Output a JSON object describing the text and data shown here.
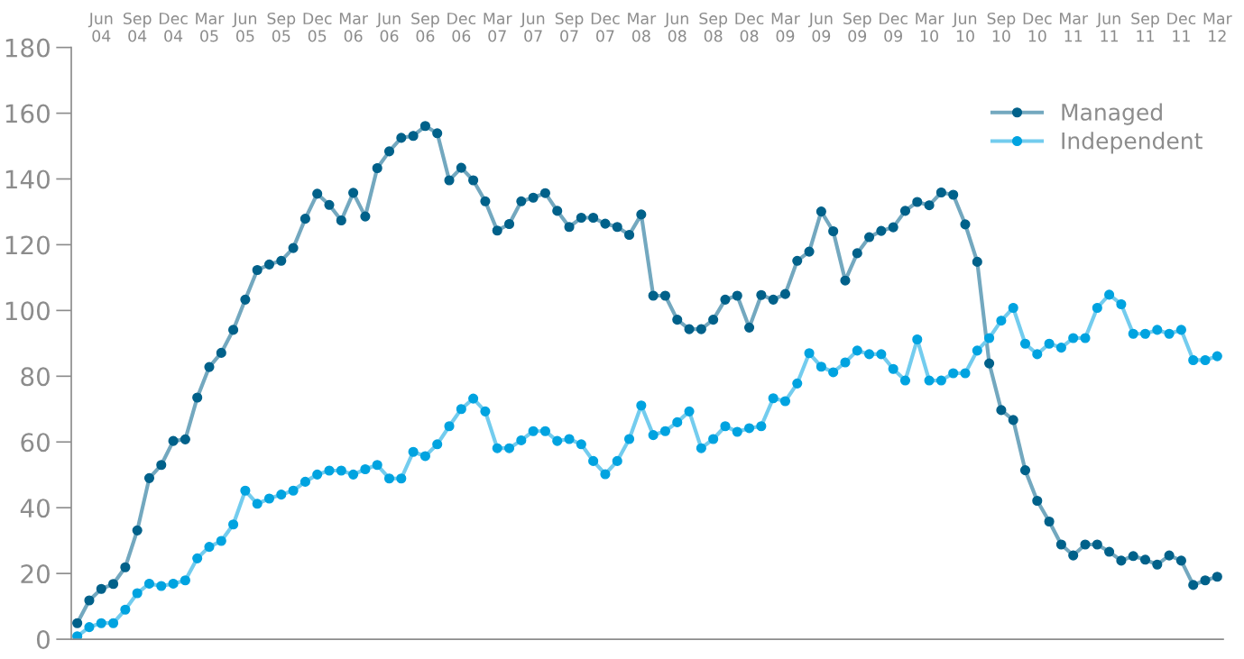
{
  "chart_data": {
    "type": "line",
    "categories": [
      null,
      null,
      "Jun\n04",
      null,
      null,
      "Sep\n04",
      null,
      null,
      "Dec\n04",
      null,
      null,
      "Mar\n05",
      null,
      null,
      "Jun\n05",
      null,
      null,
      "Sep\n05",
      null,
      null,
      "Dec\n05",
      null,
      null,
      "Mar\n06",
      null,
      null,
      "Jun\n06",
      null,
      null,
      "Sep\n06",
      null,
      null,
      "Dec\n06",
      null,
      null,
      "Mar\n07",
      null,
      null,
      "Jun\n07",
      null,
      null,
      "Sep\n07",
      null,
      null,
      "Dec\n07",
      null,
      null,
      "Mar\n08",
      null,
      null,
      "Jun\n08",
      null,
      null,
      "Sep\n08",
      null,
      null,
      "Dec\n08",
      null,
      null,
      "Mar\n09",
      null,
      null,
      "Jun\n09",
      null,
      null,
      "Sep\n09",
      null,
      null,
      "Dec\n09",
      null,
      null,
      "Mar\n10",
      null,
      null,
      "Jun\n10",
      null,
      null,
      "Sep\n10",
      null,
      null,
      "Dec\n10",
      null,
      null,
      "Mar\n11",
      null,
      null,
      "Jun\n11",
      null,
      null,
      "Sep\n11",
      null,
      null,
      "Dec\n11",
      null,
      null,
      "Mar\n12"
    ],
    "series": [
      {
        "name": "Managed",
        "color": "#00618a",
        "values": [
          4.9,
          11.8,
          15.3,
          16.8,
          21.9,
          33.1,
          49,
          53,
          60.3,
          60.8,
          73.5,
          82.8,
          87.1,
          94.1,
          103.3,
          112.3,
          114,
          115.1,
          119,
          127.9,
          135.5,
          132.1,
          127.4,
          135.8,
          128.6,
          143.3,
          148.4,
          152.5,
          153.1,
          156.1,
          153.9,
          139.6,
          143.4,
          139.6,
          133.2,
          124.3,
          126.3,
          133.2,
          134.3,
          135.7,
          130.3,
          125.4,
          128.2,
          128.2,
          126.4,
          125.4,
          123,
          129.2,
          104.5,
          104.5,
          97.2,
          94.3,
          94.3,
          97.2,
          103.3,
          104.5,
          94.8,
          104.7,
          103.3,
          105,
          115.1,
          117.9,
          130.1,
          124.1,
          109.1,
          117.4,
          122.3,
          124.2,
          125.3,
          130.3,
          133,
          132,
          135.9,
          135.2,
          126.2,
          114.8,
          83.9,
          69.7,
          66.7,
          51.4,
          42.1,
          35.8,
          28.8,
          25.5,
          28.8,
          28.8,
          26.6,
          23.9,
          25.3,
          24.2,
          22.7,
          25.5,
          23.9,
          16.5,
          17.9,
          19
        ]
      },
      {
        "name": "Independent",
        "color": "#00a3e0",
        "values": [
          0.9,
          3.7,
          4.9,
          4.9,
          9,
          14,
          16.9,
          16.2,
          16.9,
          17.9,
          24.6,
          28.1,
          29.9,
          34.9,
          45.2,
          41.2,
          42.8,
          44,
          45.2,
          47.9,
          50.1,
          51.3,
          51.3,
          50.1,
          51.7,
          53,
          48.9,
          48.9,
          57,
          55.7,
          59.3,
          64.8,
          70,
          73.2,
          69.3,
          58.1,
          58.1,
          60.5,
          63.3,
          63.3,
          60.3,
          60.9,
          59.3,
          54.2,
          50.2,
          54.2,
          60.9,
          71.1,
          62.1,
          63.3,
          66,
          69.3,
          58.1,
          60.9,
          64.8,
          63.1,
          64.2,
          64.8,
          73.3,
          72.4,
          77.8,
          87,
          82.9,
          81.2,
          84.2,
          87.8,
          86.7,
          86.7,
          82.2,
          78.7,
          91.2,
          78.7,
          78.7,
          80.9,
          80.9,
          87.8,
          91.6,
          96.9,
          100.8,
          89.9,
          86.7,
          89.9,
          88.7,
          91.6,
          91.6,
          100.8,
          104.8,
          101.9,
          92.9,
          92.9,
          94.1,
          92.9,
          94.1,
          84.9,
          84.9,
          86.1
        ]
      }
    ],
    "ylim": [
      0,
      180
    ],
    "yticks": [
      0,
      20,
      40,
      60,
      80,
      100,
      120,
      140,
      160,
      180
    ],
    "grid": false,
    "legend": "top right",
    "marker": "circle",
    "line_style": "solid"
  }
}
